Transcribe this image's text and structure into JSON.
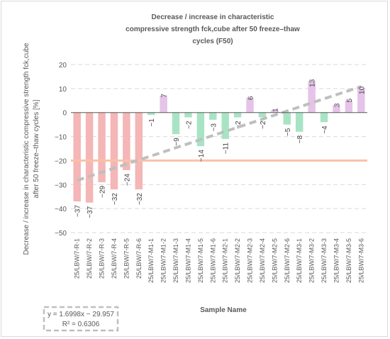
{
  "chart_data": {
    "type": "bar",
    "title_lines": [
      "Decrease / increase in characteristic",
      "compressive strength fck,cube after 50 freeze–thaw",
      "cycles (F50)"
    ],
    "xlabel": "Sample Name",
    "ylabel_lines": [
      "Decrease / increase in characteristic compressive strength fck,cube",
      "after 50 freeze–thaw cycles [%]"
    ],
    "ylim": [
      -50,
      20
    ],
    "yticks": [
      20,
      10,
      0,
      -10,
      -20,
      -30,
      -40,
      -50
    ],
    "grid": true,
    "categories": [
      "25/LBW/7-R-1",
      "25/LBW/7-R-2",
      "25/LBW/7-R-3",
      "25/LBW/7-R-4",
      "25/LBW/7-R-5",
      "25/LBW/7-R-6",
      "25/LBW/7-M1-1",
      "25/LBW/7-M1-2",
      "25/LBW/7-M1-3",
      "25/LBW/7-M1-4",
      "25/LBW/7-M1-5",
      "25/LBW/7-M1-6",
      "25/LBW/7-M2-1",
      "25/LBW/7-M2-2",
      "25/LBW/7-M2-3",
      "25/LBW/7-M2-4",
      "25/LBW/7-M2-5",
      "25/LBW/7-M2-6",
      "25/LBW/7-M3-1",
      "25/LBW/7-M3-2",
      "25/LBW/7-M3-3",
      "25/LBW/7-M3-4",
      "25/LBW/7-M3-5",
      "25/LBW/7-M3-6"
    ],
    "values": [
      -37,
      -37.5,
      -29,
      -32,
      -24,
      -32,
      -1,
      7,
      -9,
      -2,
      -14,
      -3,
      -11,
      -2,
      6,
      -2,
      1,
      -5,
      -8,
      13,
      -4,
      3,
      5,
      10
    ],
    "data_labels": [
      "-37",
      "-37",
      "-29",
      "-32",
      "-24",
      "-32",
      "-1",
      "7",
      "-9",
      "-2",
      "-14",
      "-3",
      "-11",
      "-2",
      "6",
      "-2",
      "1",
      "-5",
      "-8",
      "13",
      "-4",
      "3",
      "5",
      "10"
    ],
    "bar_colors": [
      "#f4b6b6",
      "#f4b6b6",
      "#f4b6b6",
      "#f4b6b6",
      "#f4b6b6",
      "#f4b6b6",
      "#a8e4c4",
      "#e6c3e8",
      "#a8e4c4",
      "#a8e4c4",
      "#a8e4c4",
      "#a8e4c4",
      "#a8e4c4",
      "#a8e4c4",
      "#e6c3e8",
      "#a8e4c4",
      "#e6c3e8",
      "#a8e4c4",
      "#a8e4c4",
      "#e6c3e8",
      "#a8e4c4",
      "#e6c3e8",
      "#e6c3e8",
      "#e6c3e8"
    ],
    "reference_line": {
      "y": -20,
      "color": "#f8c2a6"
    },
    "trendline": {
      "slope": 1.6998,
      "intercept": -29.957,
      "color": "#bfbfbf",
      "equation": "y = 1.6998x − 29.957",
      "r_squared": "R² = 0.6306"
    }
  }
}
